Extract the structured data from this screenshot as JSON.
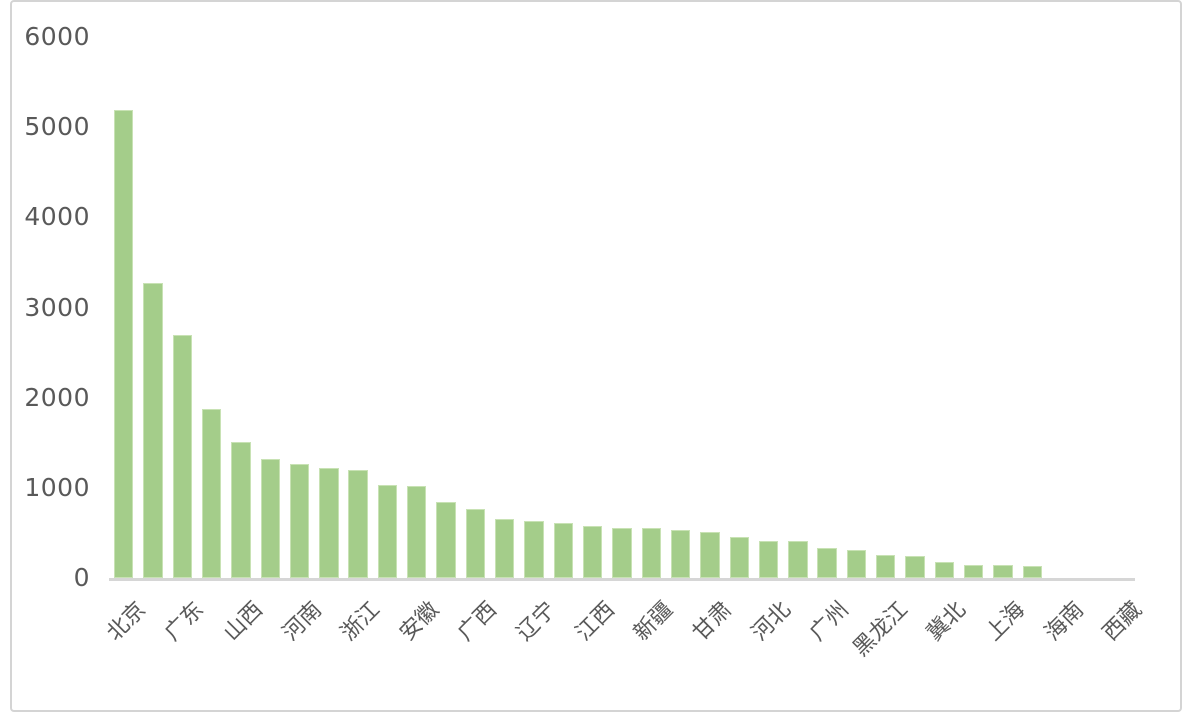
{
  "chart_data": {
    "type": "bar",
    "title": "",
    "xlabel": "",
    "ylabel": "",
    "categories": [
      "北京",
      "",
      "广东",
      "",
      "山西",
      "",
      "河南",
      "",
      "浙江",
      "",
      "安徽",
      "",
      "广西",
      "",
      "辽宁",
      "",
      "江西",
      "",
      "新疆",
      "",
      "甘肃",
      "",
      "河北",
      "",
      "广州",
      "",
      "黑龙江",
      "",
      "冀北",
      "",
      "上海",
      "",
      "海南",
      "",
      "西藏"
    ],
    "values": [
      5190,
      3270,
      2700,
      1880,
      1510,
      1320,
      1260,
      1220,
      1200,
      1030,
      1025,
      840,
      770,
      650,
      630,
      610,
      575,
      555,
      550,
      535,
      505,
      460,
      415,
      410,
      330,
      310,
      250,
      245,
      180,
      145,
      140,
      135,
      0,
      0,
      0
    ],
    "x_tick_labels_visible": [
      "北京",
      "广东",
      "山西",
      "河南",
      "浙江",
      "安徽",
      "广西",
      "辽宁",
      "江西",
      "新疆",
      "甘肃",
      "河北",
      "广州",
      "黑龙江",
      "冀北",
      "上海",
      "海南",
      "西藏"
    ],
    "x_label_interval": 2,
    "x_label_rotation_deg": 45,
    "y_ticks": [
      0,
      1000,
      2000,
      3000,
      4000,
      5000,
      6000
    ],
    "ylim": [
      0,
      6000
    ],
    "grid": false,
    "legend": false,
    "colors": {
      "bar_fill": "#a4cd8a",
      "bar_border": "#c8e2b4",
      "axis_line": "#d6d6d6",
      "tick_label": "#595959",
      "frame_border": "#d4d4d4",
      "background": "#ffffff"
    }
  }
}
